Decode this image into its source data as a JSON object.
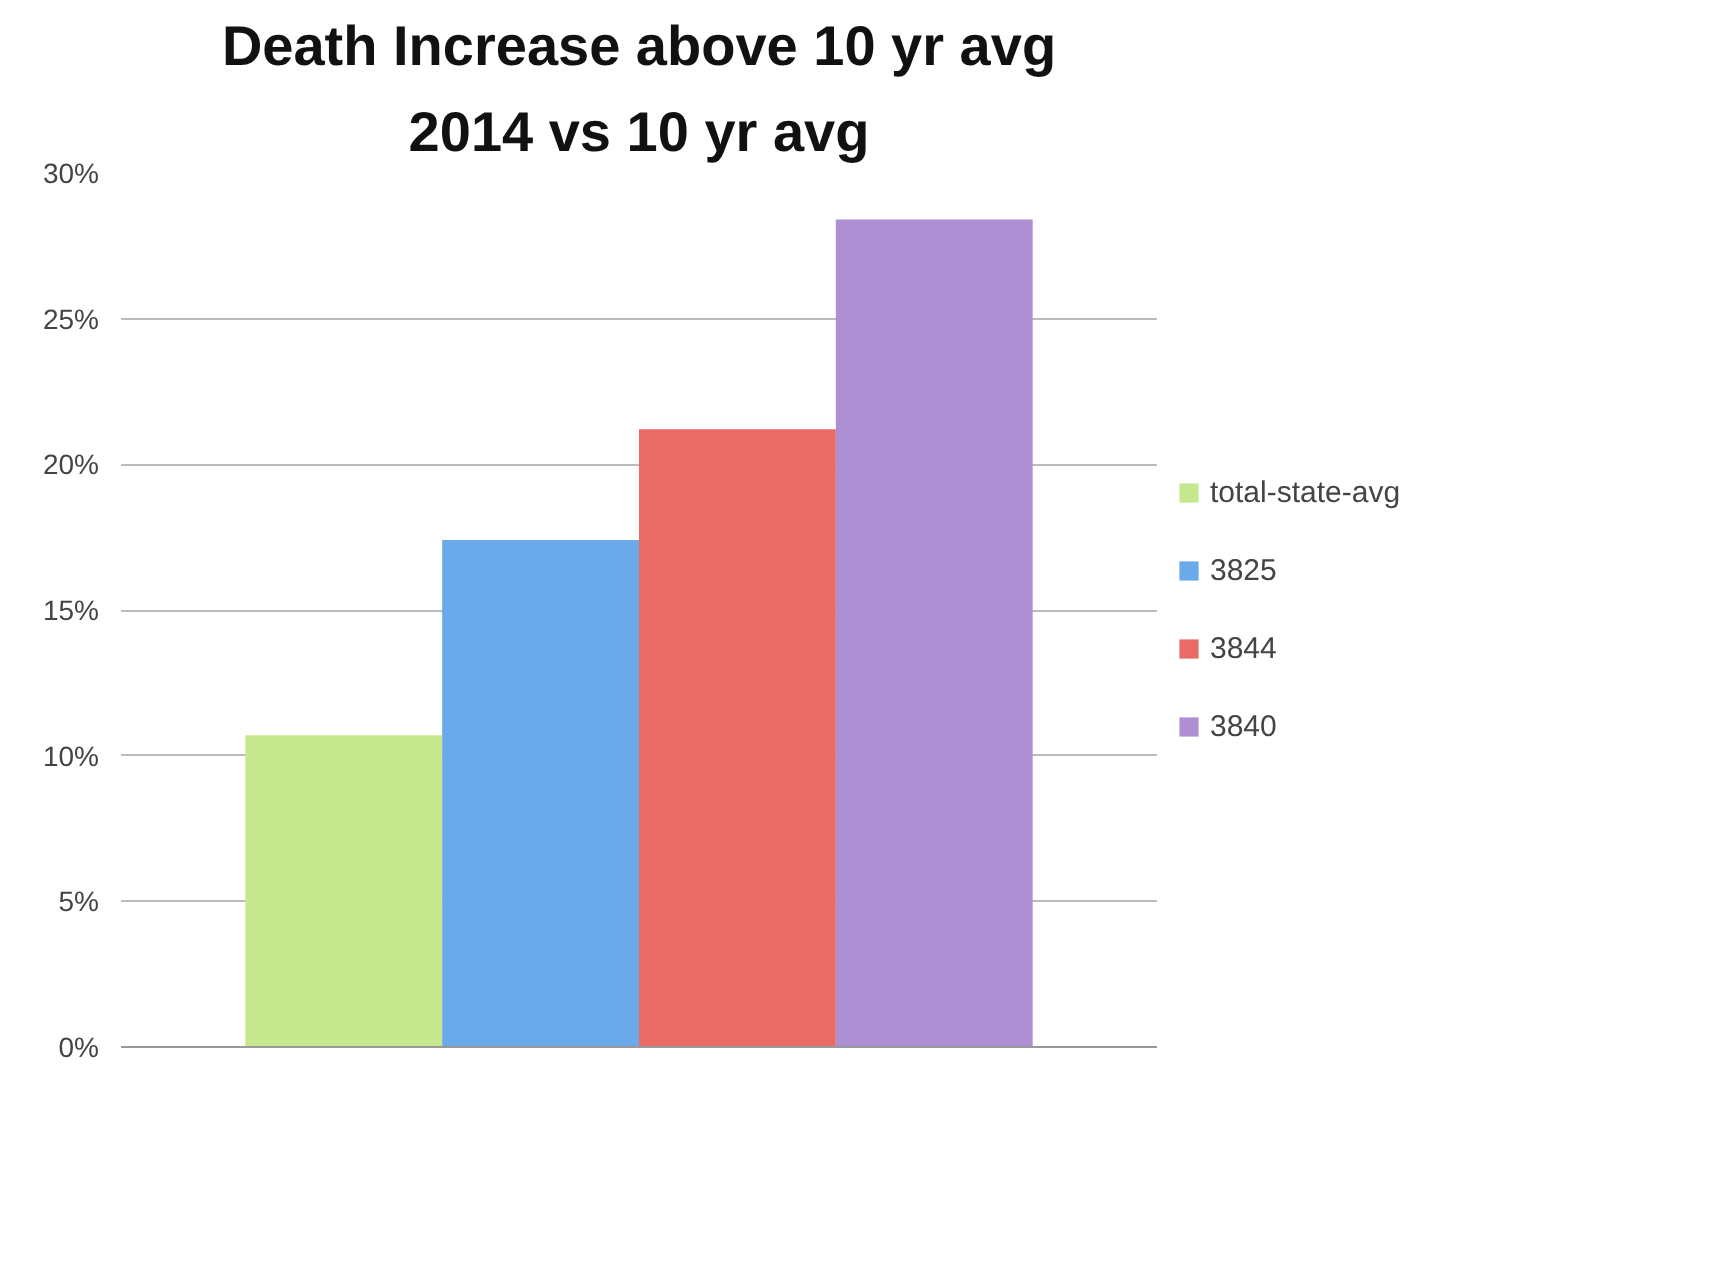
{
  "chart_data": {
    "type": "bar",
    "title": "Death Increase above 10 yr avg",
    "subtitle": "2014 vs 10 yr avg",
    "categories": [
      null
    ],
    "series": [
      {
        "name": "total-state-avg",
        "color": "#c6e88c",
        "values": [
          10.7
        ]
      },
      {
        "name": "3825",
        "color": "#6aaaea",
        "values": [
          17.4
        ]
      },
      {
        "name": "3844",
        "color": "#ea6b66",
        "values": [
          21.2
        ]
      },
      {
        "name": "3840",
        "color": "#ae8fd4",
        "values": [
          28.4
        ]
      }
    ],
    "ylim": [
      0,
      30
    ],
    "yticks": [
      {
        "value": 0,
        "label": "0%"
      },
      {
        "value": 5,
        "label": "5%"
      },
      {
        "value": 10,
        "label": "10%"
      },
      {
        "value": 15,
        "label": "15%"
      },
      {
        "value": 20,
        "label": "20%"
      },
      {
        "value": 25,
        "label": "25%"
      },
      {
        "value": 30,
        "label": "30%"
      }
    ],
    "grid": "y",
    "legend": "right"
  }
}
